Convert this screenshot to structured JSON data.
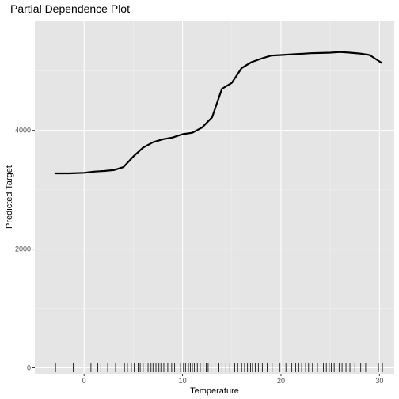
{
  "chart_data": {
    "type": "line",
    "title": "Partial Dependence Plot",
    "xlabel": "Temperature",
    "ylabel": "Predicted Target",
    "xlim": [
      -5,
      31.5
    ],
    "ylim": [
      -100,
      5850
    ],
    "x_ticks": [
      0,
      10,
      20,
      30
    ],
    "y_ticks": [
      0,
      2000,
      4000
    ],
    "grid": true,
    "colors": {
      "panel": "#e5e5e5",
      "grid_major": "#ffffff",
      "grid_minor": "#f0f0f0",
      "line": "#000000",
      "tick_text": "#4d4d4d"
    },
    "series": [
      {
        "x": [
          -3,
          -1.5,
          0,
          1,
          2,
          3,
          4,
          5,
          6,
          7,
          8,
          9,
          10,
          11,
          12,
          13,
          14,
          15,
          16,
          17,
          18,
          19,
          20,
          21,
          22,
          23,
          24,
          25,
          26,
          27,
          28,
          29,
          30.3
        ],
        "y": [
          3275,
          3275,
          3285,
          3305,
          3315,
          3330,
          3380,
          3560,
          3710,
          3800,
          3850,
          3880,
          3935,
          3960,
          4050,
          4220,
          4700,
          4800,
          5050,
          5150,
          5210,
          5260,
          5270,
          5280,
          5290,
          5300,
          5305,
          5310,
          5320,
          5310,
          5295,
          5270,
          5130
        ]
      }
    ],
    "rug_x": [
      -2.9,
      -1.1,
      0.7,
      1.4,
      1.7,
      2.4,
      3.2,
      4.1,
      4.4,
      4.8,
      5.1,
      5.5,
      5.7,
      6.0,
      6.3,
      6.5,
      6.8,
      7.0,
      7.3,
      7.6,
      7.8,
      8.1,
      8.5,
      8.9,
      9.2,
      9.8,
      10.1,
      10.3,
      10.6,
      10.8,
      11.0,
      11.2,
      11.5,
      11.8,
      12.1,
      12.4,
      12.6,
      12.9,
      13.3,
      13.7,
      14.0,
      14.4,
      14.8,
      15.3,
      15.6,
      16.0,
      16.3,
      16.6,
      16.9,
      17.1,
      17.4,
      17.7,
      18.1,
      18.6,
      19.1,
      19.9,
      20.5,
      21.1,
      21.5,
      21.8,
      22.1,
      22.5,
      22.8,
      23.2,
      23.7,
      24.3,
      24.6,
      24.9,
      25.1,
      25.4,
      25.6,
      25.9,
      26.2,
      26.6,
      27.0,
      27.5,
      28.1,
      28.6,
      29.9,
      30.3
    ]
  }
}
